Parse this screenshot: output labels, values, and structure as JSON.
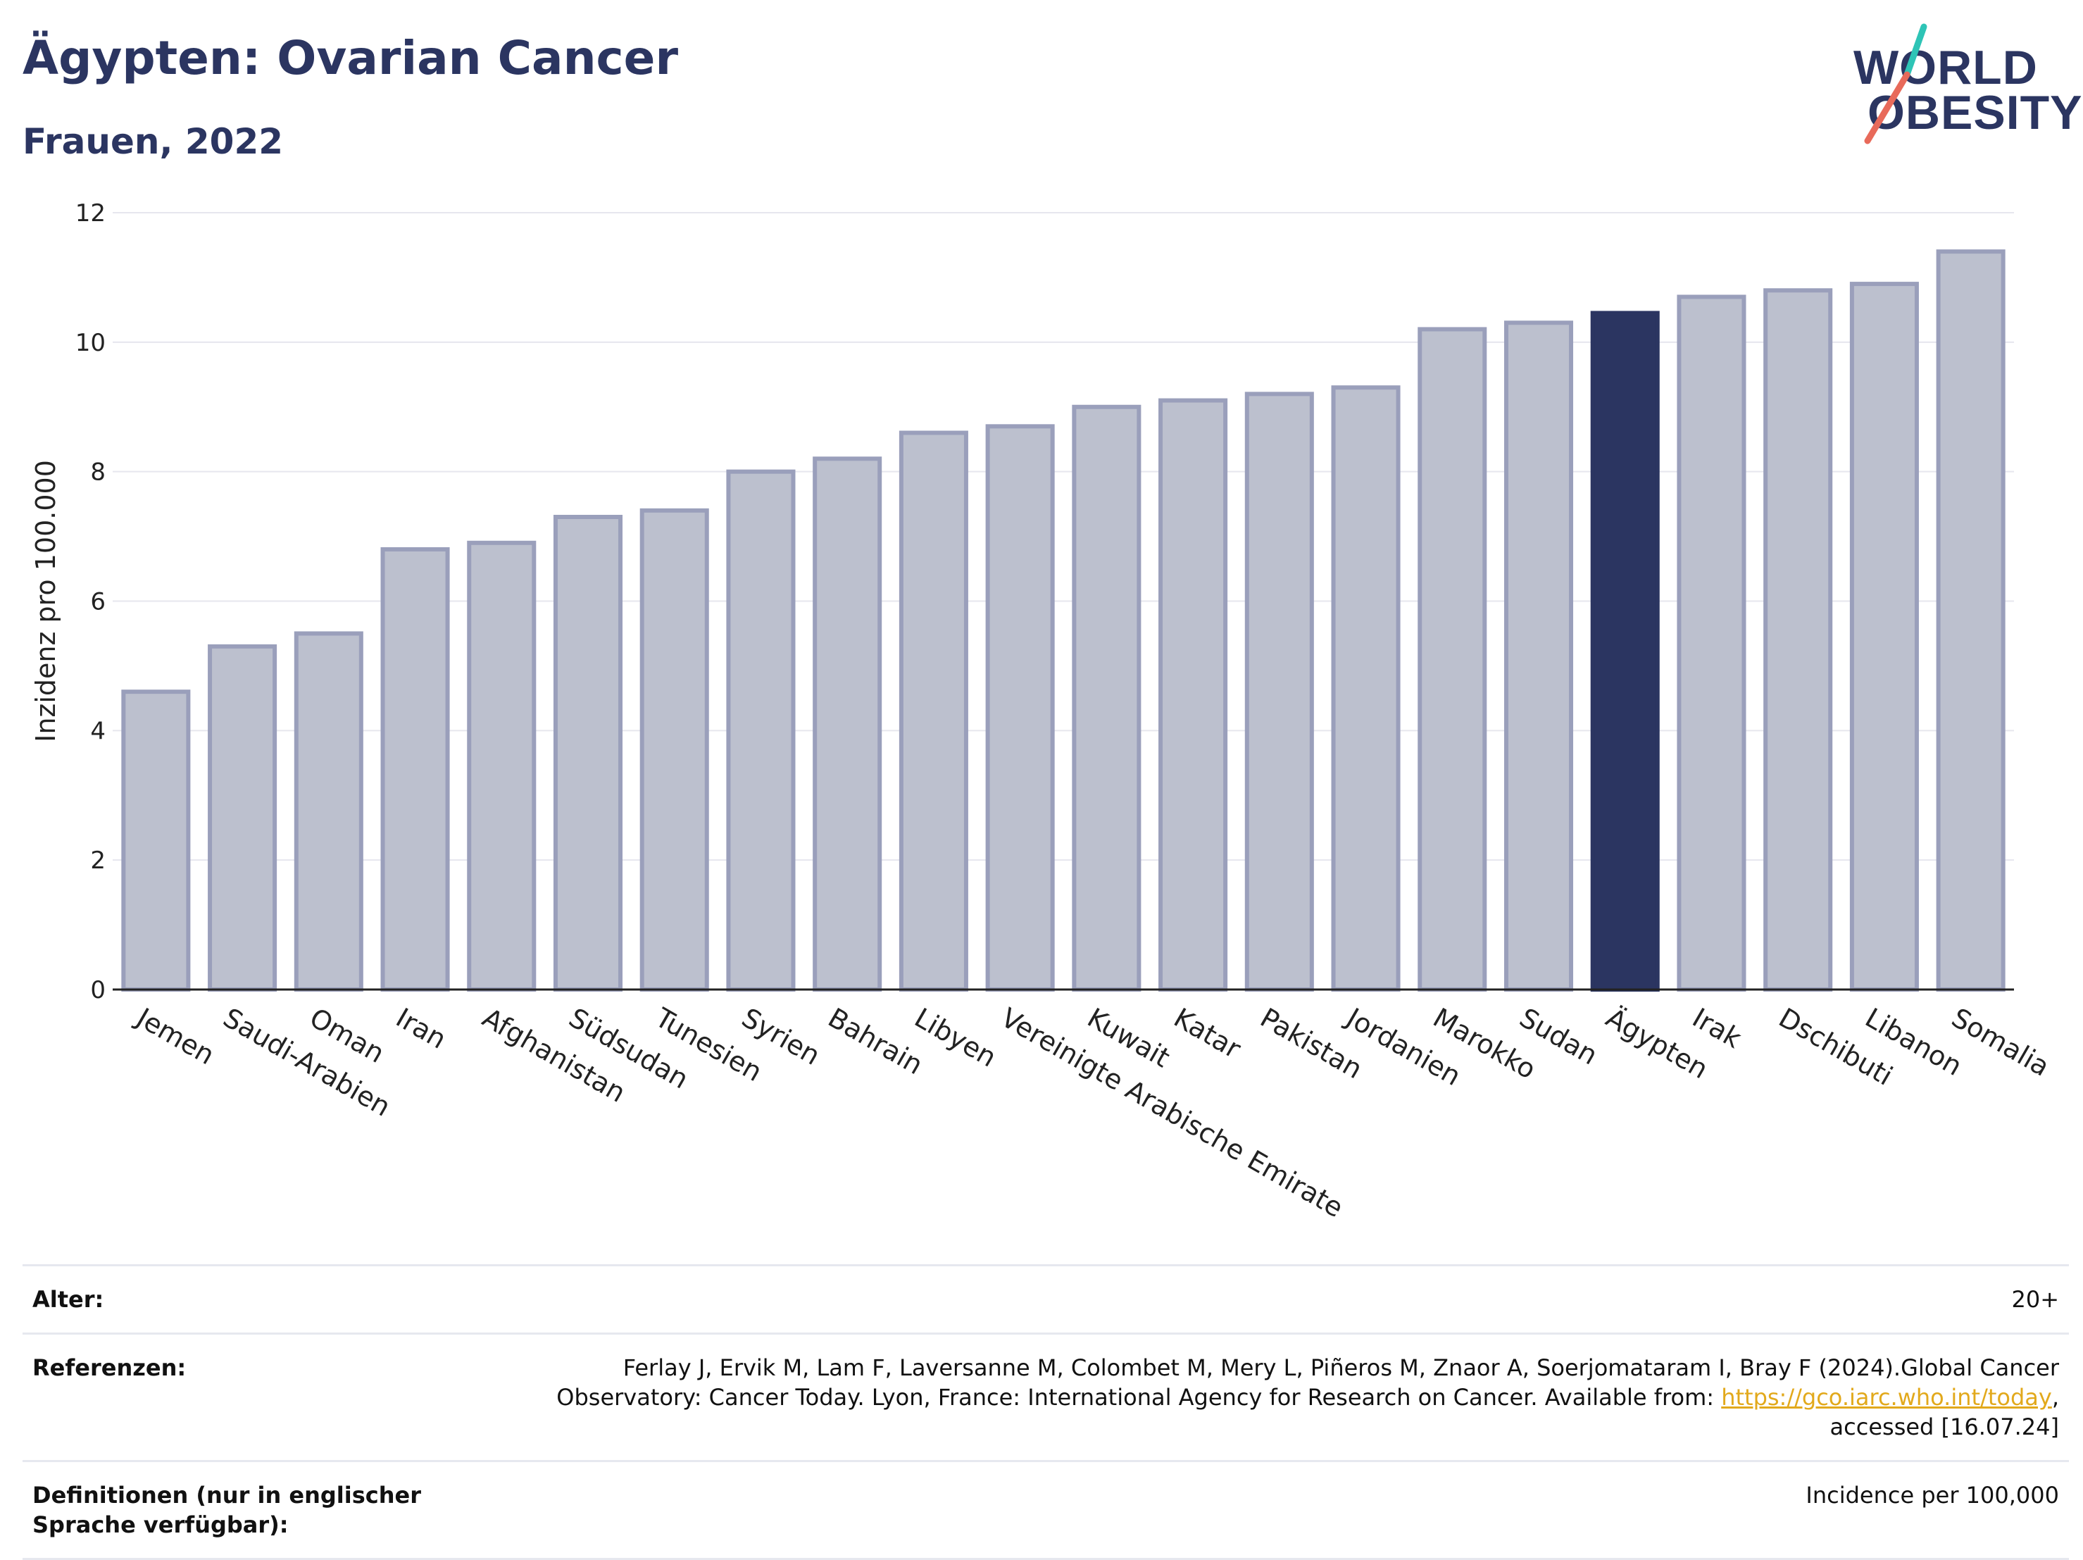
{
  "header": {
    "title": "Ägypten: Ovarian Cancer",
    "subtitle": "Frauen, 2022"
  },
  "logo": {
    "line1": "WORLD",
    "line2": "OBESITY",
    "colors": [
      "#2ec4b6",
      "#e86a5a"
    ]
  },
  "colors": {
    "bar": "#bcc0ce",
    "bar_border": "#9a9fbb",
    "highlight": "#2b3561",
    "grid": "#e6e6ee",
    "axis": "#222222"
  },
  "chart_data": {
    "type": "bar",
    "ylabel": "Inzidenz pro 100.000",
    "ylim": [
      0,
      12
    ],
    "yticks": [
      0,
      2,
      4,
      6,
      8,
      10,
      12
    ],
    "grid": true,
    "highlight": "Ägypten",
    "categories": [
      "Jemen",
      "Saudi-Arabien",
      "Oman",
      "Iran",
      "Afghanistan",
      "Südsudan",
      "Tunesien",
      "Syrien",
      "Bahrain",
      "Libyen",
      "Vereinigte Arabische Emirate",
      "Kuwait",
      "Katar",
      "Pakistan",
      "Jordanien",
      "Marokko",
      "Sudan",
      "Ägypten",
      "Irak",
      "Dschibuti",
      "Libanon",
      "Somalia"
    ],
    "values": [
      4.6,
      5.3,
      5.5,
      6.8,
      6.9,
      7.3,
      7.4,
      8.0,
      8.2,
      8.6,
      8.7,
      9.0,
      9.1,
      9.2,
      9.3,
      10.2,
      10.3,
      10.45,
      10.7,
      10.8,
      10.9,
      11.4
    ]
  },
  "info": {
    "rows": [
      {
        "label": "Alter:",
        "value": "20+"
      },
      {
        "label": "Referenzen:",
        "value": "Ferlay J, Ervik M, Lam F, Laversanne M, Colombet M, Mery L, Piñeros M, Znaor A, Soerjomataram I, Bray F (2024).Global Cancer Observatory: Cancer Today. Lyon, France: International Agency for Research on Cancer. Available from:",
        "link": "https://gco.iarc.who.int/today",
        "suffix": ", accessed [16.07.24]"
      },
      {
        "label": "Definitionen (nur in englischer Sprache verfügbar):",
        "value": "Incidence per 100,000"
      }
    ]
  }
}
